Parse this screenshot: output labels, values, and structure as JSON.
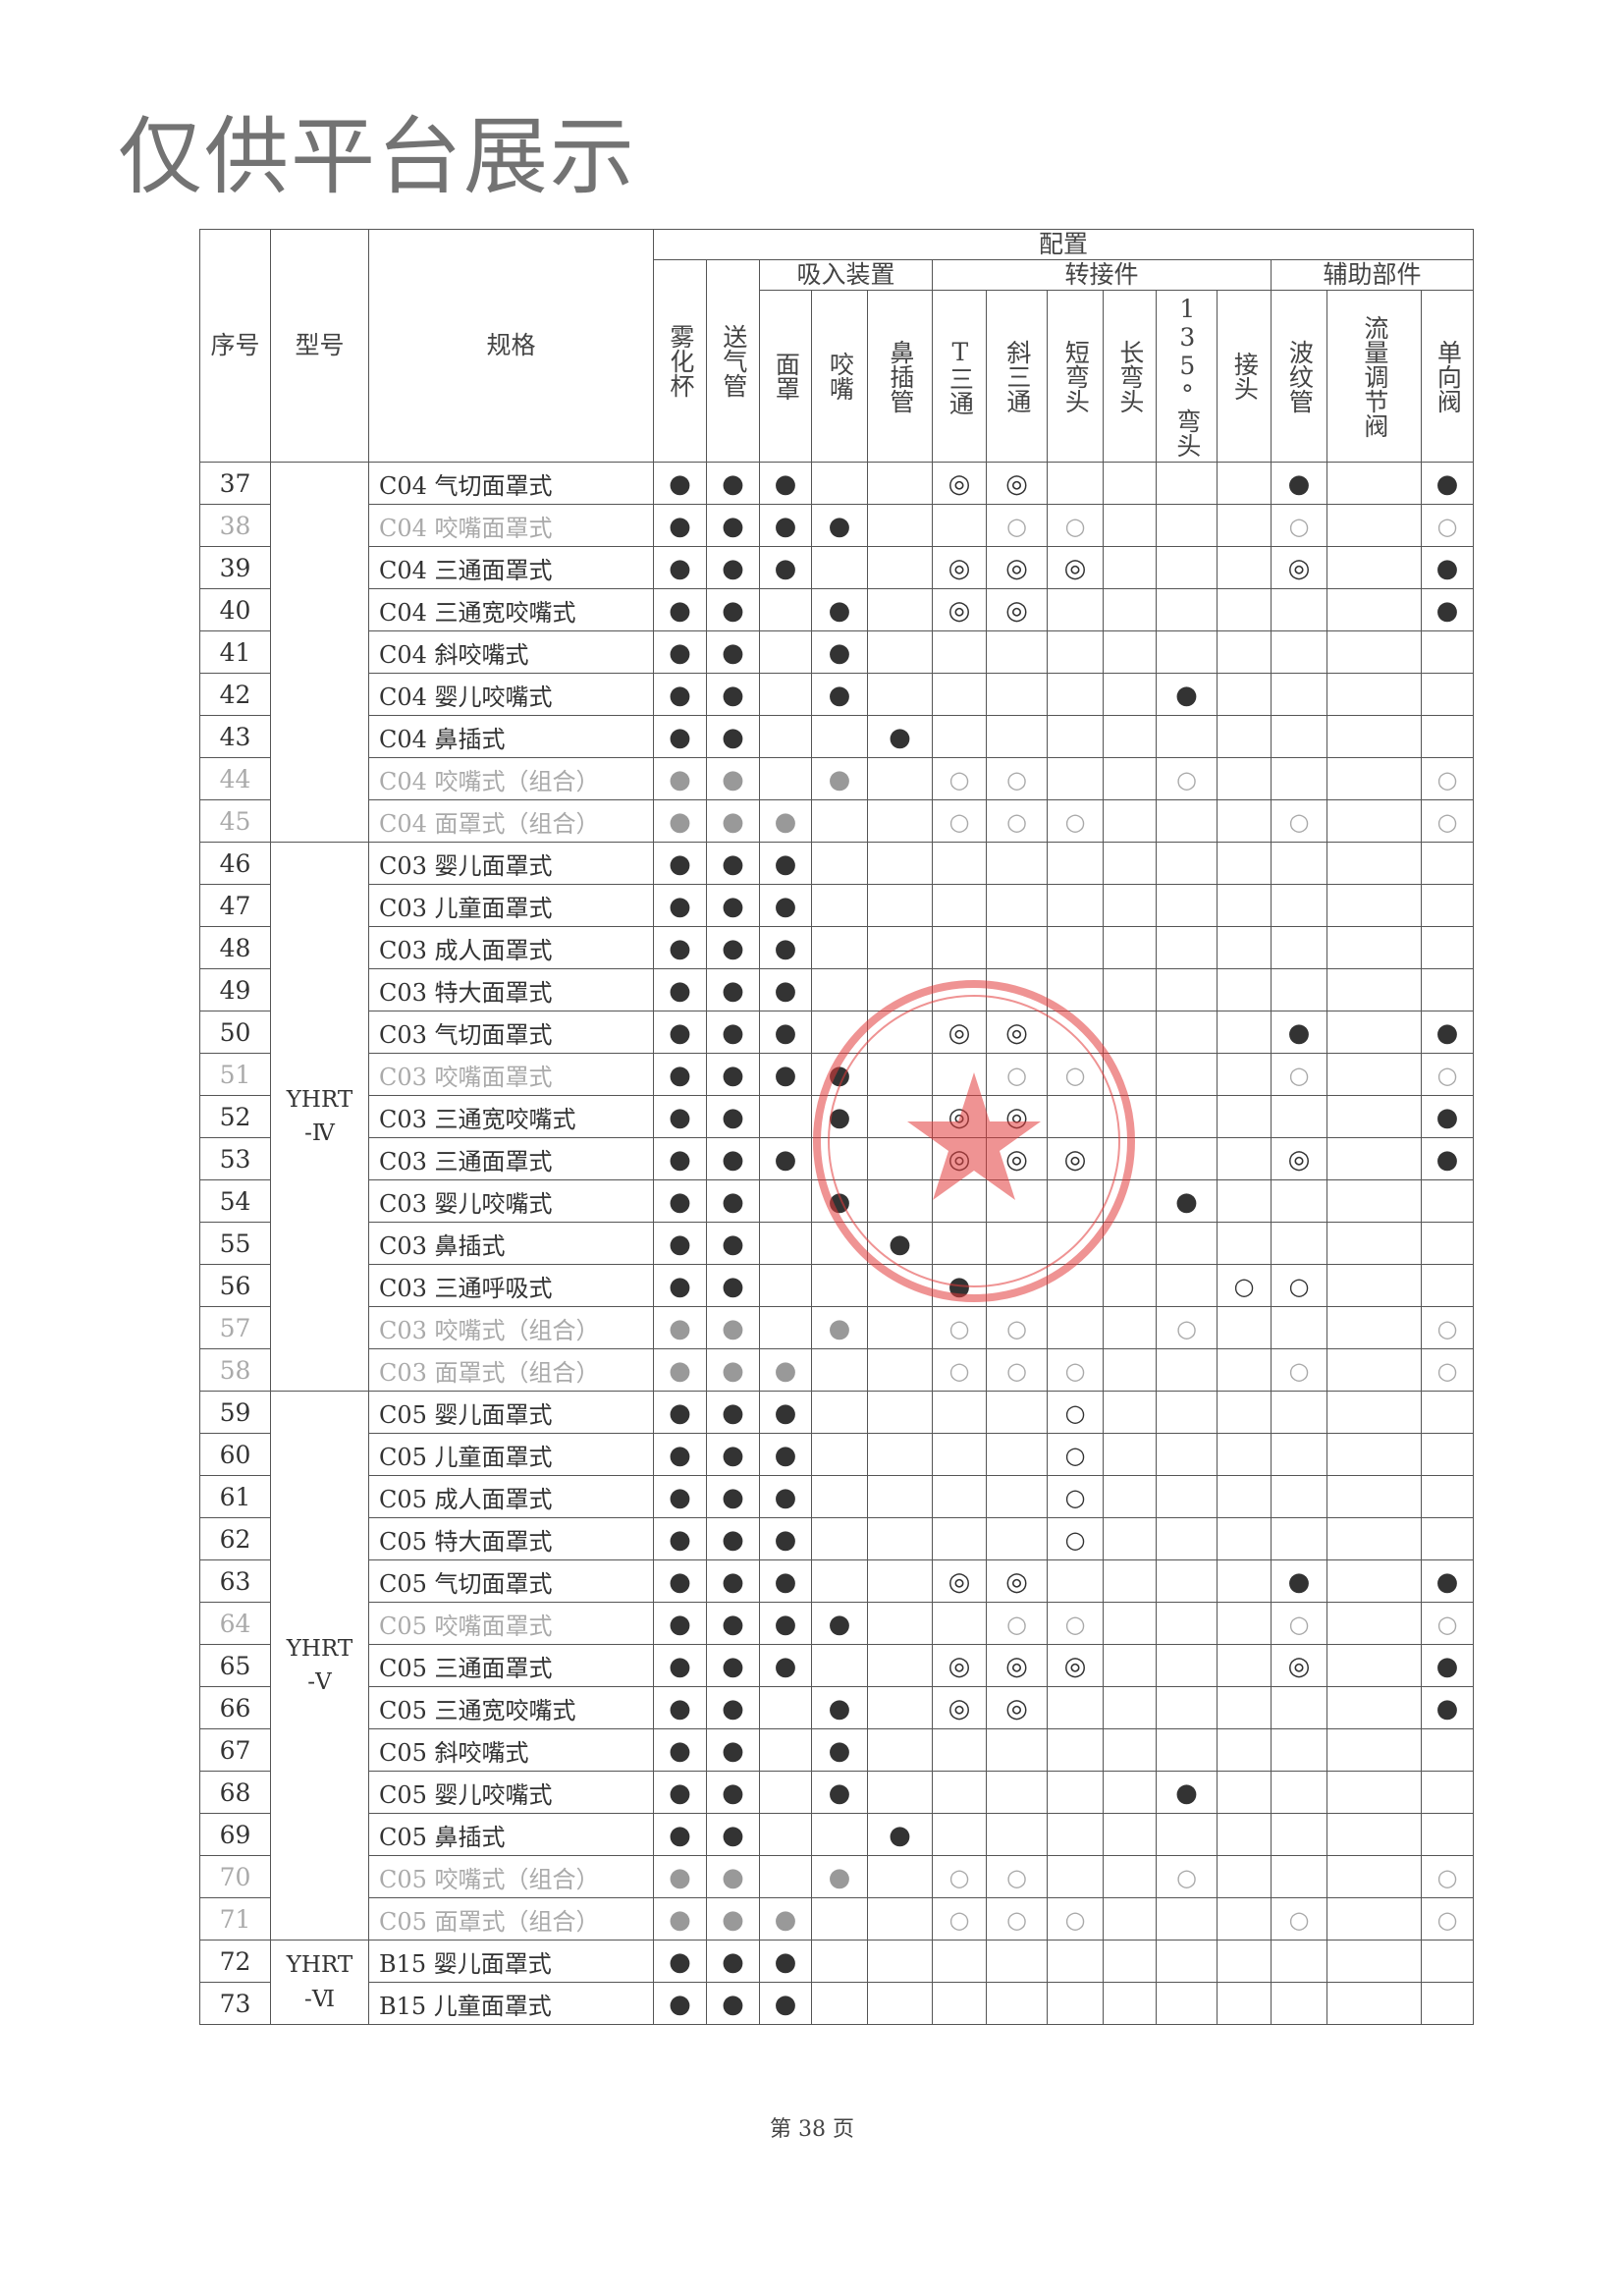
{
  "watermark": "仅供平台展示",
  "header": {
    "no": "序号",
    "model": "型号",
    "spec": "规格",
    "config": "配置",
    "groups": {
      "inhale": "吸入装置",
      "adapter": "转接件",
      "aux": "辅助部件"
    },
    "columns": [
      "雾化杯",
      "送气管",
      "面罩",
      "咬嘴",
      "鼻插管",
      "T三通",
      "斜三通",
      "短弯头",
      "长弯头",
      "135°弯头",
      "接头",
      "波纹管",
      "流量调节阀",
      "单向阀"
    ]
  },
  "symbols": {
    "filled": "●",
    "double": "◎",
    "open": "○"
  },
  "model_groups": [
    {
      "label": "",
      "rows": 9
    },
    {
      "label": "YHRT-Ⅳ",
      "rows": 13
    },
    {
      "label": "YHRT-Ⅴ",
      "rows": 13
    },
    {
      "label": "YHRT-Ⅵ",
      "rows": 2
    }
  ],
  "rows": [
    {
      "no": "37",
      "spec": "C04 气切面罩式",
      "style": "",
      "cells": [
        "●",
        "●",
        "●",
        "",
        "",
        "◎",
        "◎",
        "",
        "",
        "",
        "",
        "●",
        "",
        "●"
      ]
    },
    {
      "no": "38",
      "spec": "C04 咬嘴面罩式",
      "style": "faded",
      "cells": [
        "●",
        "●",
        "●",
        "●",
        "",
        "",
        "○",
        "○",
        "",
        "",
        "",
        "○",
        "",
        "○"
      ]
    },
    {
      "no": "39",
      "spec": "C04 三通面罩式",
      "style": "",
      "cells": [
        "●",
        "●",
        "●",
        "",
        "",
        "◎",
        "◎",
        "◎",
        "",
        "",
        "",
        "◎",
        "",
        "●"
      ]
    },
    {
      "no": "40",
      "spec": "C04 三通宽咬嘴式",
      "style": "",
      "cells": [
        "●",
        "●",
        "",
        "●",
        "",
        "◎",
        "◎",
        "",
        "",
        "",
        "",
        "",
        "",
        "●"
      ]
    },
    {
      "no": "41",
      "spec": "C04 斜咬嘴式",
      "style": "",
      "cells": [
        "●",
        "●",
        "",
        "●",
        "",
        "",
        "",
        "",
        "",
        "",
        "",
        "",
        "",
        ""
      ]
    },
    {
      "no": "42",
      "spec": "C04 婴儿咬嘴式",
      "style": "",
      "cells": [
        "●",
        "●",
        "",
        "●",
        "",
        "",
        "",
        "",
        "",
        "●",
        "",
        "",
        "",
        ""
      ]
    },
    {
      "no": "43",
      "spec": "C04 鼻插式",
      "style": "",
      "cells": [
        "●",
        "●",
        "",
        "",
        "●",
        "",
        "",
        "",
        "",
        "",
        "",
        "",
        "",
        ""
      ]
    },
    {
      "no": "44",
      "spec": "C04 咬嘴式（组合）",
      "style": "faded combo",
      "cells": [
        "●",
        "●",
        "",
        "●",
        "",
        "○",
        "○",
        "",
        "",
        "○",
        "",
        "",
        "",
        "○"
      ]
    },
    {
      "no": "45",
      "spec": "C04 面罩式（组合）",
      "style": "faded combo",
      "cells": [
        "●",
        "●",
        "●",
        "",
        "",
        "○",
        "○",
        "○",
        "",
        "",
        "",
        "○",
        "",
        "○"
      ]
    },
    {
      "no": "46",
      "spec": "C03 婴儿面罩式",
      "style": "",
      "cells": [
        "●",
        "●",
        "●",
        "",
        "",
        "",
        "",
        "",
        "",
        "",
        "",
        "",
        "",
        ""
      ]
    },
    {
      "no": "47",
      "spec": "C03 儿童面罩式",
      "style": "",
      "cells": [
        "●",
        "●",
        "●",
        "",
        "",
        "",
        "",
        "",
        "",
        "",
        "",
        "",
        "",
        ""
      ]
    },
    {
      "no": "48",
      "spec": "C03 成人面罩式",
      "style": "",
      "cells": [
        "●",
        "●",
        "●",
        "",
        "",
        "",
        "",
        "",
        "",
        "",
        "",
        "",
        "",
        ""
      ]
    },
    {
      "no": "49",
      "spec": "C03 特大面罩式",
      "style": "",
      "cells": [
        "●",
        "●",
        "●",
        "",
        "",
        "",
        "",
        "",
        "",
        "",
        "",
        "",
        "",
        ""
      ]
    },
    {
      "no": "50",
      "spec": "C03 气切面罩式",
      "style": "",
      "cells": [
        "●",
        "●",
        "●",
        "",
        "",
        "◎",
        "◎",
        "",
        "",
        "",
        "",
        "●",
        "",
        "●"
      ]
    },
    {
      "no": "51",
      "spec": "C03 咬嘴面罩式",
      "style": "faded",
      "cells": [
        "●",
        "●",
        "●",
        "●",
        "",
        "",
        "○",
        "○",
        "",
        "",
        "",
        "○",
        "",
        "○"
      ]
    },
    {
      "no": "52",
      "spec": "C03 三通宽咬嘴式",
      "style": "",
      "cells": [
        "●",
        "●",
        "",
        "●",
        "",
        "◎",
        "◎",
        "",
        "",
        "",
        "",
        "",
        "",
        "●"
      ]
    },
    {
      "no": "53",
      "spec": "C03 三通面罩式",
      "style": "",
      "cells": [
        "●",
        "●",
        "●",
        "",
        "",
        "◎",
        "◎",
        "◎",
        "",
        "",
        "",
        "◎",
        "",
        "●"
      ]
    },
    {
      "no": "54",
      "spec": "C03 婴儿咬嘴式",
      "style": "",
      "cells": [
        "●",
        "●",
        "",
        "●",
        "",
        "",
        "",
        "",
        "",
        "●",
        "",
        "",
        "",
        ""
      ]
    },
    {
      "no": "55",
      "spec": "C03 鼻插式",
      "style": "",
      "cells": [
        "●",
        "●",
        "",
        "",
        "●",
        "",
        "",
        "",
        "",
        "",
        "",
        "",
        "",
        ""
      ]
    },
    {
      "no": "56",
      "spec": "C03 三通呼吸式",
      "style": "",
      "cells": [
        "●",
        "●",
        "",
        "",
        "",
        "●",
        "",
        "",
        "",
        "",
        "○",
        "○",
        "",
        ""
      ]
    },
    {
      "no": "57",
      "spec": "C03 咬嘴式（组合）",
      "style": "faded combo",
      "cells": [
        "●",
        "●",
        "",
        "●",
        "",
        "○",
        "○",
        "",
        "",
        "○",
        "",
        "",
        "",
        "○"
      ]
    },
    {
      "no": "58",
      "spec": "C03 面罩式（组合）",
      "style": "faded combo",
      "cells": [
        "●",
        "●",
        "●",
        "",
        "",
        "○",
        "○",
        "○",
        "",
        "",
        "",
        "○",
        "",
        "○"
      ]
    },
    {
      "no": "59",
      "spec": "C05 婴儿面罩式",
      "style": "",
      "cells": [
        "●",
        "●",
        "●",
        "",
        "",
        "",
        "",
        "○",
        "",
        "",
        "",
        "",
        "",
        ""
      ]
    },
    {
      "no": "60",
      "spec": "C05 儿童面罩式",
      "style": "",
      "cells": [
        "●",
        "●",
        "●",
        "",
        "",
        "",
        "",
        "○",
        "",
        "",
        "",
        "",
        "",
        ""
      ]
    },
    {
      "no": "61",
      "spec": "C05 成人面罩式",
      "style": "",
      "cells": [
        "●",
        "●",
        "●",
        "",
        "",
        "",
        "",
        "○",
        "",
        "",
        "",
        "",
        "",
        ""
      ]
    },
    {
      "no": "62",
      "spec": "C05 特大面罩式",
      "style": "",
      "cells": [
        "●",
        "●",
        "●",
        "",
        "",
        "",
        "",
        "○",
        "",
        "",
        "",
        "",
        "",
        ""
      ]
    },
    {
      "no": "63",
      "spec": "C05 气切面罩式",
      "style": "",
      "cells": [
        "●",
        "●",
        "●",
        "",
        "",
        "◎",
        "◎",
        "",
        "",
        "",
        "",
        "●",
        "",
        "●"
      ]
    },
    {
      "no": "64",
      "spec": "C05 咬嘴面罩式",
      "style": "faded",
      "cells": [
        "●",
        "●",
        "●",
        "●",
        "",
        "",
        "○",
        "○",
        "",
        "",
        "",
        "○",
        "",
        "○"
      ]
    },
    {
      "no": "65",
      "spec": "C05 三通面罩式",
      "style": "",
      "cells": [
        "●",
        "●",
        "●",
        "",
        "",
        "◎",
        "◎",
        "◎",
        "",
        "",
        "",
        "◎",
        "",
        "●"
      ]
    },
    {
      "no": "66",
      "spec": "C05 三通宽咬嘴式",
      "style": "",
      "cells": [
        "●",
        "●",
        "",
        "●",
        "",
        "◎",
        "◎",
        "",
        "",
        "",
        "",
        "",
        "",
        "●"
      ]
    },
    {
      "no": "67",
      "spec": "C05 斜咬嘴式",
      "style": "",
      "cells": [
        "●",
        "●",
        "",
        "●",
        "",
        "",
        "",
        "",
        "",
        "",
        "",
        "",
        "",
        ""
      ]
    },
    {
      "no": "68",
      "spec": "C05 婴儿咬嘴式",
      "style": "",
      "cells": [
        "●",
        "●",
        "",
        "●",
        "",
        "",
        "",
        "",
        "",
        "●",
        "",
        "",
        "",
        ""
      ]
    },
    {
      "no": "69",
      "spec": "C05 鼻插式",
      "style": "",
      "cells": [
        "●",
        "●",
        "",
        "",
        "●",
        "",
        "",
        "",
        "",
        "",
        "",
        "",
        "",
        ""
      ]
    },
    {
      "no": "70",
      "spec": "C05 咬嘴式（组合）",
      "style": "faded combo",
      "cells": [
        "●",
        "●",
        "",
        "●",
        "",
        "○",
        "○",
        "",
        "",
        "○",
        "",
        "",
        "",
        "○"
      ]
    },
    {
      "no": "71",
      "spec": "C05 面罩式（组合）",
      "style": "faded combo",
      "cells": [
        "●",
        "●",
        "●",
        "",
        "",
        "○",
        "○",
        "○",
        "",
        "",
        "",
        "○",
        "",
        "○"
      ]
    },
    {
      "no": "72",
      "spec": "B15 婴儿面罩式",
      "style": "",
      "cells": [
        "●",
        "●",
        "●",
        "",
        "",
        "",
        "",
        "",
        "",
        "",
        "",
        "",
        "",
        ""
      ]
    },
    {
      "no": "73",
      "spec": "B15 儿童面罩式",
      "style": "",
      "cells": [
        "●",
        "●",
        "●",
        "",
        "",
        "",
        "",
        "",
        "",
        "",
        "",
        "",
        "",
        ""
      ]
    }
  ],
  "footer": "第 38 页",
  "colors": {
    "stamp": "#e23b3b",
    "ink": "#333333",
    "faded": "#aaaaaa"
  }
}
